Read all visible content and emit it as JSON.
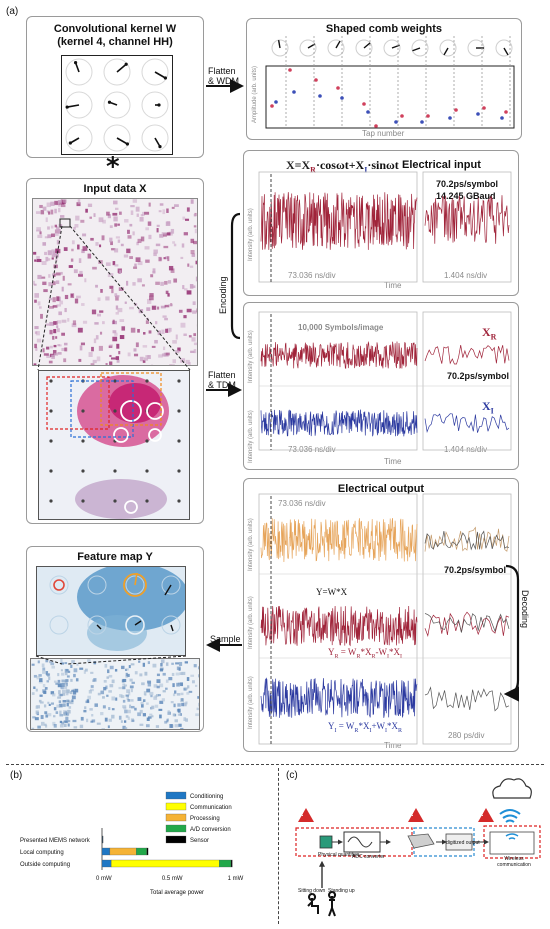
{
  "figure_label": "(a)",
  "kernel_panel": {
    "title_line1": "Convolutional kernel W",
    "title_line2": "(kernel 4, channel HH)"
  },
  "convolve_symbol": "*",
  "comb_panel": {
    "title": "Shaped comb weights",
    "ylabel": "Amplitude (arb. units)",
    "xlabel": "Tap number"
  },
  "arrows": {
    "flatten_wdm_1": "Flatten",
    "flatten_wdm_2": "& WDM",
    "flatten_tdm_1": "Flatten",
    "flatten_tdm_2": "& TDM",
    "encoding": "Encoding",
    "decoding": "Decoding",
    "sample": "Sample"
  },
  "input_panel": {
    "title": "Input data X"
  },
  "electrical_input": {
    "title": "Electrical input",
    "equation": "X=X",
    "eq_sub_r": "R",
    "eq_mid": "·cosωt+X",
    "eq_sub_i": "I",
    "eq_end": "·sinωt",
    "ylabel": "Intensity (arb. units)",
    "xlabel": "Time",
    "timescale_left": "73.036 ns/div",
    "timescale_right": "1.404 ns/div",
    "rate1": "70.2ps/symbol",
    "rate2": "14.245 GBaud"
  },
  "tdm_panel": {
    "symbols_label": "10,000 Symbols/image",
    "xr": "X",
    "xr_sub": "R",
    "xi": "X",
    "xi_sub": "I",
    "rate": "70.2ps/symbol",
    "ylabel1": "Intensity (arb. units)",
    "ylabel2": "Intensity (arb. units)",
    "xlabel": "Time",
    "timescale_left": "73.036 ns/div",
    "timescale_right": "1.404 ns/div"
  },
  "output_panel": {
    "title": "Electrical output",
    "timescale": "73.036 ns/div",
    "rate": "70.2ps/symbol",
    "eq_y": "Y=W*X",
    "eq_yr": "Y",
    "eq_yr_sub": "R",
    "eq_yr_rest": " = W",
    "eq_yr_rest2": "*X",
    "eq_yr_rest3": "-W",
    "eq_yr_rest4": "*X",
    "eq_yi": "Y",
    "eq_yi_sub": "I",
    "eq_yi_rest": " = W",
    "eq_yi_rest2": "*X",
    "eq_yi_rest3": "+W",
    "eq_yi_rest4": "*X",
    "sub_r": "R",
    "sub_i": "I",
    "ylabel": "Intensity (arb. units)",
    "xlabel": "Time",
    "timescale_right": "280 ps/div"
  },
  "feature_panel": {
    "title": "Feature map Y"
  },
  "bottom_labels": {
    "b": "(b)",
    "c": "(c)"
  },
  "chart_data": {
    "type": "bar",
    "orientation": "horizontal",
    "stacked": true,
    "categories": [
      "Presented MEMS network",
      "Local computing",
      "Outside computing"
    ],
    "series": [
      {
        "name": "Conditioning",
        "color": "#1f77c4",
        "values": [
          0.004,
          0.06,
          0.07
        ]
      },
      {
        "name": "Communication",
        "color": "#ffff00",
        "values": [
          0.0,
          0.0,
          0.82
        ]
      },
      {
        "name": "Processing",
        "color": "#f5b335",
        "values": [
          0.0,
          0.2,
          0.0
        ]
      },
      {
        "name": "A/D conversion",
        "color": "#22a84a",
        "values": [
          0.0,
          0.08,
          0.09
        ]
      },
      {
        "name": "Sensor",
        "color": "#000000",
        "values": [
          0.004,
          0.01,
          0.01
        ]
      }
    ],
    "xlabel": "Total average power",
    "xticks": [
      "0 mW",
      "0.5 mW",
      "1 mW"
    ],
    "xlim": [
      0,
      1.2
    ]
  },
  "panel_c": {
    "physical": "Physical quantities",
    "adc": "ADC converter",
    "digitized": "digitized output",
    "wireless": "Wireless communication",
    "sitting": "Sitting down",
    "standing": "Standing up",
    "warn": "!"
  }
}
